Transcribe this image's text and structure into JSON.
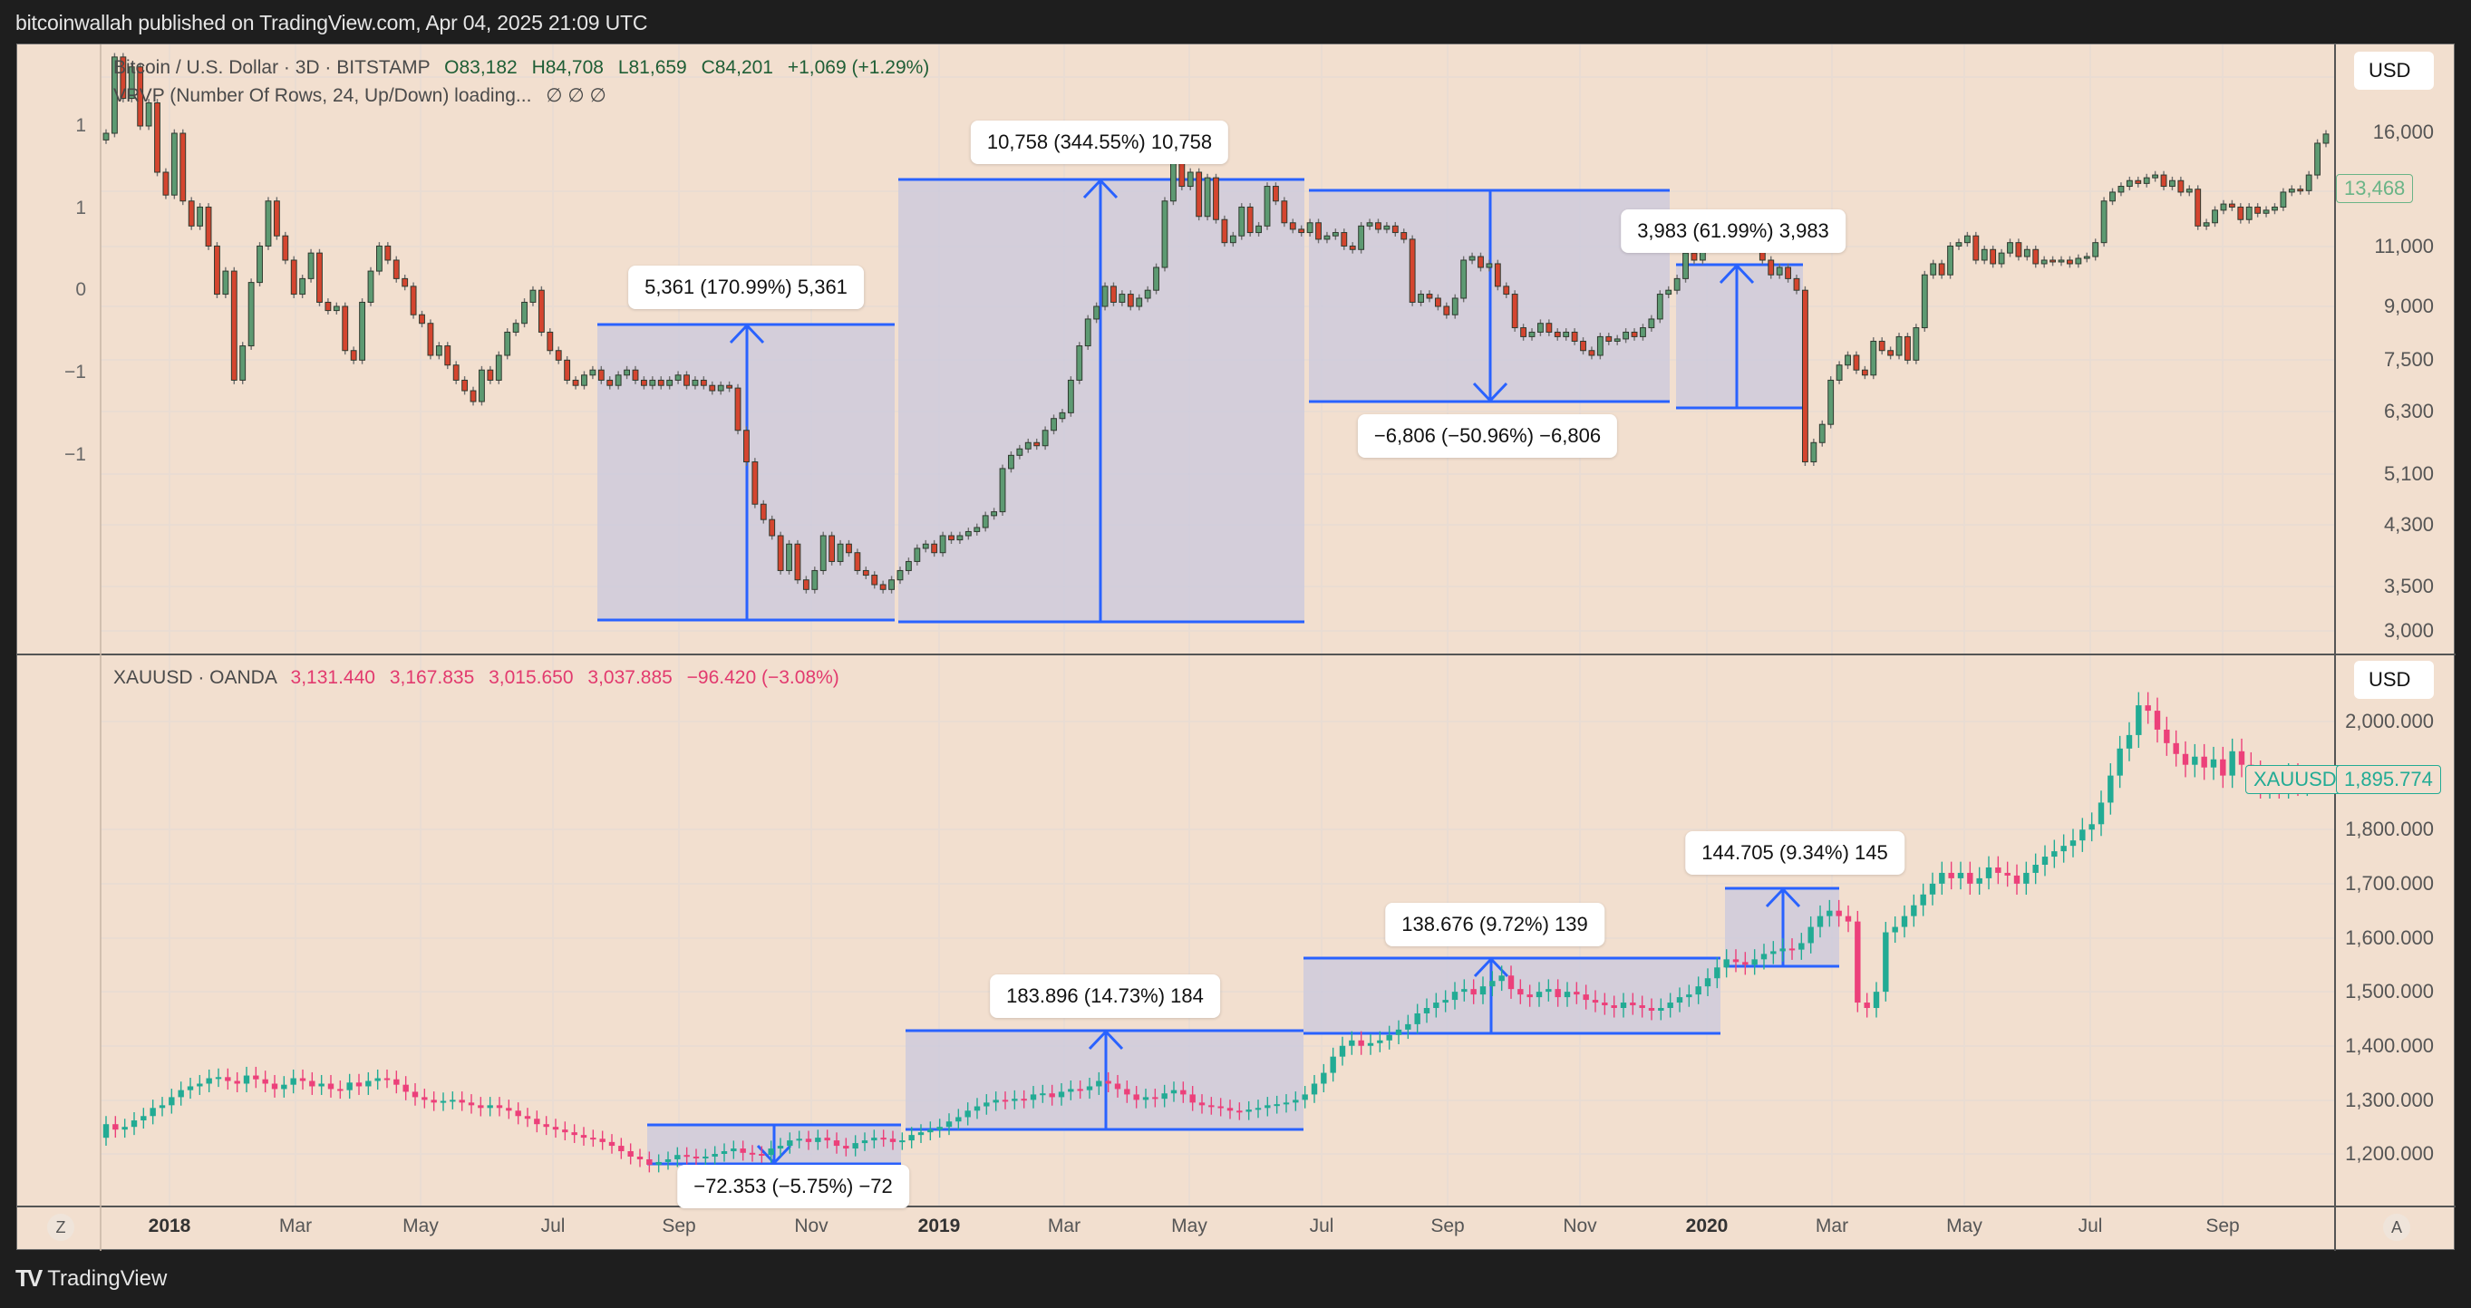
{
  "header": {
    "published": "bitcoinwallah published on TradingView.com, Apr 04, 2025 21:09 UTC"
  },
  "btc_pane": {
    "title": "Bitcoin / U.S. Dollar · 3D · BITSTAMP",
    "open": "O83,182",
    "high": "H84,708",
    "low": "L81,659",
    "close": "C84,201",
    "change": "+1,069 (+1.29%)",
    "indicator": "VRVP (Number Of Rows, 24, Up/Down) loading...",
    "indicator_values": "∅  ∅  ∅",
    "currency": "USD",
    "last_price_tag": "13,468",
    "left_axis": [
      "1",
      "1",
      "0",
      "−1",
      "−1"
    ],
    "right_axis": [
      "16,000",
      "11,000",
      "9,000",
      "7,500",
      "6,300",
      "5,100",
      "4,300",
      "3,500",
      "3,000"
    ]
  },
  "gold_pane": {
    "title": "XAUUSD · OANDA",
    "open": "3,131.440",
    "high": "3,167.835",
    "low": "3,015.650",
    "close": "3,037.885",
    "change": "−96.420 (−3.08%)",
    "currency": "USD",
    "symbol_tag": "XAUUSD",
    "last_price_tag": "1,895.774",
    "right_axis": [
      "2,000.000",
      "1,800.000",
      "1,700.000",
      "1,600.000",
      "1,500.000",
      "1,400.000",
      "1,300.000",
      "1,200.000"
    ]
  },
  "time_axis": {
    "labels": [
      "2018",
      "Mar",
      "May",
      "Jul",
      "Sep",
      "Nov",
      "2019",
      "Mar",
      "May",
      "Jul",
      "Sep",
      "Nov",
      "2020",
      "Mar",
      "May",
      "Jul",
      "Sep"
    ],
    "zoom_button": "Z",
    "auto_button": "A"
  },
  "footer": {
    "brand": "TradingView",
    "mark": "TV"
  },
  "colors": {
    "background": "#f2dfcf",
    "btc_up": "#5d9a72",
    "btc_down": "#d4452f",
    "gold_up": "#22ab94",
    "gold_down": "#ec407a",
    "measure_line": "#2962ff",
    "measure_fill": "#c9c8de"
  },
  "chart_data": [
    {
      "type": "candlestick",
      "title": "Bitcoin / U.S. Dollar · 3D · BITSTAMP",
      "xlabel": "",
      "ylabel": "USD",
      "x_range": [
        "Dec 2017",
        "Oct 2020"
      ],
      "y_scale": "log",
      "ylim": [
        2800,
        18000
      ],
      "y_ticks": [
        16000,
        11000,
        9000,
        7500,
        6300,
        5100,
        4300,
        3500,
        3000
      ],
      "closes": [
        13500,
        17000,
        15000,
        16500,
        13800,
        14800,
        12000,
        11200,
        13500,
        11000,
        10200,
        10800,
        9600,
        8300,
        8900,
        6400,
        7100,
        8600,
        9600,
        11000,
        9900,
        9200,
        8300,
        8700,
        9400,
        8100,
        7900,
        8000,
        7000,
        6800,
        8100,
        8900,
        9600,
        9200,
        8700,
        8500,
        7800,
        7600,
        6900,
        7100,
        6700,
        6400,
        6200,
        6000,
        6600,
        6400,
        6900,
        7400,
        7600,
        8100,
        8400,
        7400,
        7000,
        6800,
        6400,
        6300,
        6500,
        6600,
        6400,
        6300,
        6500,
        6600,
        6400,
        6300,
        6400,
        6300,
        6400,
        6500,
        6300,
        6400,
        6300,
        6200,
        6300,
        6250,
        5500,
        5000,
        4400,
        4200,
        4000,
        3600,
        3900,
        3500,
        3400,
        3600,
        4000,
        3700,
        3900,
        3800,
        3600,
        3550,
        3450,
        3400,
        3500,
        3600,
        3700,
        3850,
        3900,
        3800,
        4000,
        3950,
        4000,
        4050,
        4100,
        4250,
        4300,
        4900,
        5100,
        5200,
        5300,
        5250,
        5500,
        5700,
        5800,
        6400,
        7100,
        7700,
        8000,
        8500,
        8100,
        8300,
        8000,
        8200,
        8400,
        9000,
        11000,
        12500,
        11500,
        12000,
        10500,
        11800,
        10400,
        9700,
        9900,
        10800,
        10000,
        10200,
        11500,
        11000,
        10300,
        10100,
        10000,
        10300,
        9800,
        9900,
        10000,
        9600,
        9500,
        10200,
        10300,
        10100,
        10200,
        10000,
        9800,
        8100,
        8300,
        8200,
        8000,
        7800,
        8200,
        9200,
        9300,
        9000,
        9100,
        8500,
        8300,
        7500,
        7300,
        7400,
        7600,
        7400,
        7300,
        7400,
        7200,
        7000,
        6900,
        7300,
        7200,
        7250,
        7400,
        7300,
        7500,
        7700,
        8300,
        8400,
        8700,
        9400,
        9200,
        9800,
        9700,
        10000,
        10300,
        10200,
        9600,
        9700,
        9200,
        8800,
        9000,
        8700,
        8400,
        5000,
        5300,
        5600,
        6400,
        6700,
        6900,
        6600,
        6500,
        7200,
        7000,
        6900,
        7300,
        6800,
        7500,
        8800,
        9100,
        8800,
        9600,
        9700,
        9900,
        9200,
        9500,
        9100,
        9400,
        9700,
        9300,
        9500,
        9100,
        9200,
        9150,
        9200,
        9100,
        9250,
        9300,
        9700,
        11000,
        11300,
        11500,
        11700,
        11600,
        11800,
        11900,
        11500,
        11700,
        11300,
        11400,
        10200,
        10300,
        10700,
        10900,
        10800,
        10400,
        10800,
        10600,
        10700,
        10800,
        11300,
        11400,
        11350,
        11900,
        13100,
        13468
      ],
      "annotations": [
        {
          "type": "price_range",
          "label": "5,361 (170.99%) 5,361",
          "direction": "up",
          "change": 5361,
          "pct": 170.99
        },
        {
          "type": "price_range",
          "label": "10,758 (344.55%) 10,758",
          "direction": "up",
          "change": 10758,
          "pct": 344.55
        },
        {
          "type": "price_range",
          "label": "−6,806 (−50.96%) −6,806",
          "direction": "down",
          "change": -6806,
          "pct": -50.96
        },
        {
          "type": "price_range",
          "label": "3,983 (61.99%) 3,983",
          "direction": "up",
          "change": 3983,
          "pct": 61.99
        }
      ]
    },
    {
      "type": "candlestick",
      "title": "XAUUSD · OANDA",
      "xlabel": "",
      "ylabel": "USD",
      "x_range": [
        "Dec 2017",
        "Oct 2020"
      ],
      "y_scale": "linear",
      "ylim": [
        1140,
        2080
      ],
      "y_ticks": [
        2000,
        1800,
        1700,
        1600,
        1500,
        1400,
        1300,
        1200
      ],
      "closes": [
        1255,
        1245,
        1250,
        1262,
        1270,
        1285,
        1290,
        1305,
        1318,
        1325,
        1330,
        1340,
        1342,
        1335,
        1330,
        1345,
        1338,
        1330,
        1320,
        1328,
        1340,
        1335,
        1325,
        1330,
        1320,
        1318,
        1332,
        1325,
        1335,
        1340,
        1338,
        1328,
        1315,
        1305,
        1300,
        1295,
        1298,
        1300,
        1295,
        1290,
        1285,
        1290,
        1285,
        1280,
        1270,
        1265,
        1255,
        1250,
        1245,
        1240,
        1235,
        1230,
        1228,
        1222,
        1215,
        1205,
        1195,
        1190,
        1180,
        1185,
        1190,
        1198,
        1195,
        1192,
        1195,
        1200,
        1205,
        1210,
        1202,
        1200,
        1198,
        1210,
        1215,
        1225,
        1228,
        1222,
        1230,
        1225,
        1215,
        1210,
        1220,
        1225,
        1230,
        1228,
        1222,
        1225,
        1235,
        1240,
        1245,
        1250,
        1260,
        1268,
        1280,
        1288,
        1295,
        1300,
        1298,
        1302,
        1300,
        1310,
        1312,
        1305,
        1315,
        1320,
        1318,
        1325,
        1335,
        1330,
        1320,
        1310,
        1300,
        1305,
        1302,
        1312,
        1318,
        1310,
        1295,
        1290,
        1288,
        1285,
        1280,
        1278,
        1282,
        1285,
        1290,
        1292,
        1295,
        1300,
        1310,
        1330,
        1350,
        1380,
        1400,
        1410,
        1400,
        1405,
        1410,
        1420,
        1430,
        1440,
        1460,
        1470,
        1480,
        1485,
        1500,
        1505,
        1495,
        1510,
        1520,
        1530,
        1505,
        1495,
        1490,
        1500,
        1505,
        1490,
        1500,
        1495,
        1485,
        1480,
        1475,
        1470,
        1480,
        1475,
        1470,
        1465,
        1470,
        1480,
        1490,
        1495,
        1510,
        1525,
        1545,
        1560,
        1555,
        1550,
        1560,
        1570,
        1575,
        1580,
        1578,
        1590,
        1620,
        1640,
        1650,
        1640,
        1630,
        1480,
        1470,
        1500,
        1610,
        1620,
        1640,
        1660,
        1680,
        1700,
        1720,
        1710,
        1720,
        1700,
        1710,
        1730,
        1720,
        1715,
        1700,
        1720,
        1735,
        1750,
        1760,
        1770,
        1780,
        1800,
        1810,
        1850,
        1900,
        1950,
        1975,
        2030,
        2020,
        1985,
        1960,
        1940,
        1920,
        1935,
        1915,
        1930,
        1900,
        1945,
        1920,
        1905,
        1880,
        1895,
        1880,
        1900,
        1885,
        1895,
        1890,
        1895.774
      ],
      "annotations": [
        {
          "type": "price_range",
          "label": "−72.353 (−5.75%) −72",
          "direction": "down",
          "change": -72.353,
          "pct": -5.75
        },
        {
          "type": "price_range",
          "label": "183.896 (14.73%) 184",
          "direction": "up",
          "change": 183.896,
          "pct": 14.73
        },
        {
          "type": "price_range",
          "label": "138.676 (9.72%) 139",
          "direction": "up",
          "change": 138.676,
          "pct": 9.72
        },
        {
          "type": "price_range",
          "label": "144.705 (9.34%) 145",
          "direction": "up",
          "change": 144.705,
          "pct": 9.34
        }
      ]
    }
  ]
}
